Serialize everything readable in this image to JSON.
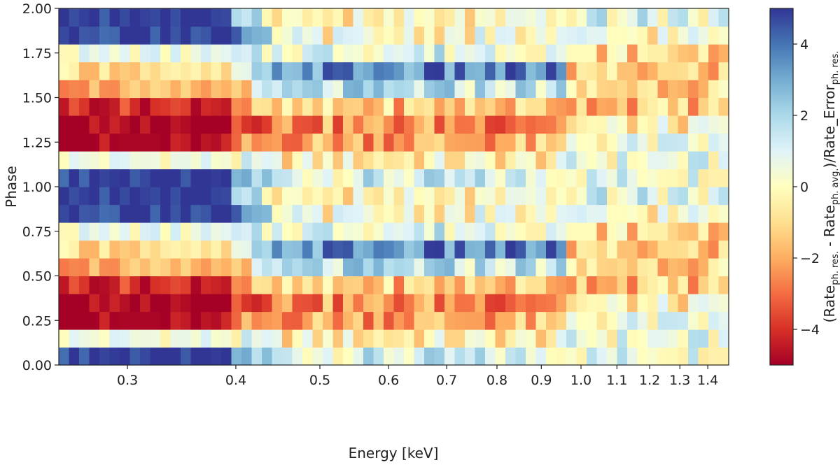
{
  "chart_data": {
    "type": "heatmap",
    "xlabel": "Energy [keV]",
    "ylabel": "Phase",
    "x_scale": "log",
    "xlim": [
      0.25,
      1.48
    ],
    "ylim": [
      0.0,
      2.0
    ],
    "x_ticks": [
      {
        "value": 0.3,
        "label": "0.3"
      },
      {
        "value": 0.4,
        "label": "0.4"
      },
      {
        "value": 0.5,
        "label": "0.5"
      },
      {
        "value": 0.6,
        "label": "0.6"
      },
      {
        "value": 0.7,
        "label": "0.7"
      },
      {
        "value": 0.8,
        "label": "0.8"
      },
      {
        "value": 0.9,
        "label": "0.9"
      },
      {
        "value": 1.0,
        "label": "1.0"
      },
      {
        "value": 1.1,
        "label": "1.1"
      },
      {
        "value": 1.2,
        "label": "1.2"
      },
      {
        "value": 1.3,
        "label": "1.3"
      },
      {
        "value": 1.4,
        "label": "1.4"
      }
    ],
    "y_ticks": [
      {
        "value": 0.0,
        "label": "0.00"
      },
      {
        "value": 0.25,
        "label": "0.25"
      },
      {
        "value": 0.5,
        "label": "0.50"
      },
      {
        "value": 0.75,
        "label": "0.75"
      },
      {
        "value": 1.0,
        "label": "1.00"
      },
      {
        "value": 1.25,
        "label": "1.25"
      },
      {
        "value": 1.5,
        "label": "1.50"
      },
      {
        "value": 1.75,
        "label": "1.75"
      },
      {
        "value": 2.0,
        "label": "2.00"
      }
    ],
    "phase_bins": 20,
    "energy_bins": 66,
    "colorbar": {
      "colormap": "RdYlBu",
      "range": [
        -5,
        5
      ],
      "ticks": [
        {
          "value": -4,
          "label": "−4"
        },
        {
          "value": -2,
          "label": "−2"
        },
        {
          "value": 0,
          "label": "0"
        },
        {
          "value": 2,
          "label": "2"
        },
        {
          "value": 4,
          "label": "4"
        }
      ],
      "label_main": "(Rate",
      "label_sub1": "ph. res.",
      "label_mid": " - Rate",
      "label_sub2": "ph. avg.",
      "label_end": ")/Rate_Error",
      "label_sub3": "ph. res."
    },
    "phase_profiles": [
      {
        "phase_bin": 0,
        "low_energy": 5,
        "mid_energy": 1.0,
        "high_energy": 0.8
      },
      {
        "phase_bin": 1,
        "low_energy": 0.5,
        "mid_energy": -0.5,
        "high_energy": 0.5
      },
      {
        "phase_bin": 2,
        "low_energy": -5,
        "mid_energy": -2.0,
        "high_energy": 0.3
      },
      {
        "phase_bin": 3,
        "low_energy": -5,
        "mid_energy": -2.5,
        "high_energy": -0.5
      },
      {
        "phase_bin": 4,
        "low_energy": -4,
        "mid_energy": -1.5,
        "high_energy": -1.5
      },
      {
        "phase_bin": 5,
        "low_energy": -2,
        "mid_energy": 1.5,
        "high_energy": -1.0
      },
      {
        "phase_bin": 6,
        "low_energy": -1,
        "mid_energy": 3.5,
        "high_energy": -1.5
      },
      {
        "phase_bin": 7,
        "low_energy": 0.5,
        "mid_energy": 1.0,
        "high_energy": -1.0
      },
      {
        "phase_bin": 8,
        "low_energy": 5,
        "mid_energy": 0.0,
        "high_energy": 0.0
      },
      {
        "phase_bin": 9,
        "low_energy": 5,
        "mid_energy": -0.5,
        "high_energy": 0.8
      },
      {
        "phase_bin": 10,
        "low_energy": 5,
        "mid_energy": 1.0,
        "high_energy": 0.8
      },
      {
        "phase_bin": 11,
        "low_energy": 0.5,
        "mid_energy": -0.5,
        "high_energy": 0.5
      },
      {
        "phase_bin": 12,
        "low_energy": -5,
        "mid_energy": -2.0,
        "high_energy": 0.3
      },
      {
        "phase_bin": 13,
        "low_energy": -5,
        "mid_energy": -2.5,
        "high_energy": -0.5
      },
      {
        "phase_bin": 14,
        "low_energy": -4,
        "mid_energy": -1.5,
        "high_energy": -1.5
      },
      {
        "phase_bin": 15,
        "low_energy": -2,
        "mid_energy": 1.5,
        "high_energy": -1.0
      },
      {
        "phase_bin": 16,
        "low_energy": -1,
        "mid_energy": 3.5,
        "high_energy": -1.5
      },
      {
        "phase_bin": 17,
        "low_energy": 0.5,
        "mid_energy": 1.0,
        "high_energy": -1.0
      },
      {
        "phase_bin": 18,
        "low_energy": 5,
        "mid_energy": 0.0,
        "high_energy": 0.0
      },
      {
        "phase_bin": 19,
        "low_energy": 5,
        "mid_energy": -0.5,
        "high_energy": 0.8
      }
    ]
  }
}
